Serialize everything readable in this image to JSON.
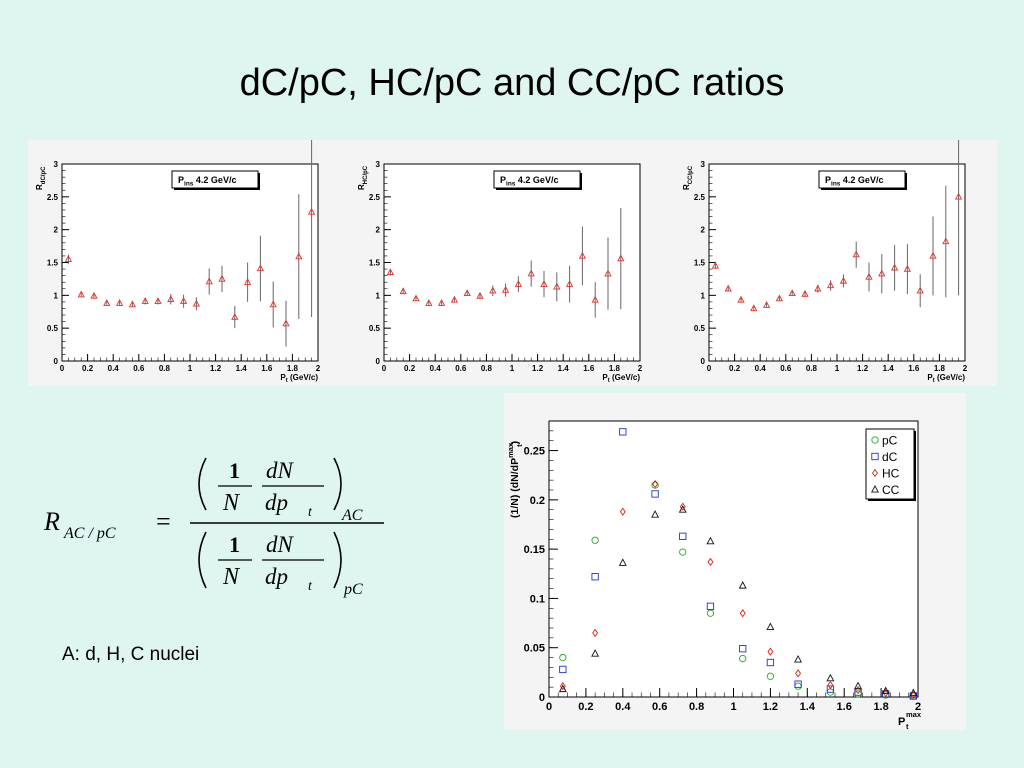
{
  "slide": {
    "title": "dC/pC, HC/pC and CC/pC ratios",
    "note": "A:  d, H, C nuclei"
  },
  "formula": {
    "lhs_main": "R",
    "lhs_sub": "AC / pC",
    "eq": "=",
    "one": "1",
    "N": "N",
    "dN": "dN",
    "dp": "dp",
    "t": "t",
    "sub_top": "AC",
    "sub_bottom": "pC"
  },
  "colors": {
    "background": "#dff5ef",
    "panel": "#f4f4f4",
    "ratio_marker": "#e0322a",
    "error_bar": "#666666",
    "pC": "#22aa22",
    "dC": "#2233cc",
    "HC": "#dd2211",
    "CC": "#111111"
  },
  "chart_data": [
    {
      "type": "scatter",
      "ylabel_main": "R",
      "ylabel_sub": "dC/pC",
      "xlabel": "P",
      "xlabel_sub": "t",
      "xlabel_unit": "(GeV/c)",
      "legend_main": "P",
      "legend_sub": "ins",
      "legend_rest": "4.2 GeV/c",
      "xlim": [
        0,
        2
      ],
      "ylim": [
        0,
        3
      ],
      "xticks": [
        "0",
        "0.2",
        "0.4",
        "0.6",
        "0.8",
        "1",
        "1.2",
        "1.4",
        "1.6",
        "1.8",
        "2"
      ],
      "yticks": [
        "0",
        "0.5",
        "1",
        "1.5",
        "2",
        "2.5",
        "3"
      ],
      "marker": "open-triangle",
      "points": [
        {
          "x": 0.05,
          "y": 1.55,
          "err": 0.07
        },
        {
          "x": 0.15,
          "y": 1.01,
          "err": 0.03
        },
        {
          "x": 0.25,
          "y": 0.99,
          "err": 0.03
        },
        {
          "x": 0.35,
          "y": 0.88,
          "err": 0.03
        },
        {
          "x": 0.45,
          "y": 0.88,
          "err": 0.03
        },
        {
          "x": 0.55,
          "y": 0.86,
          "err": 0.03
        },
        {
          "x": 0.65,
          "y": 0.91,
          "err": 0.05
        },
        {
          "x": 0.75,
          "y": 0.91,
          "err": 0.05
        },
        {
          "x": 0.85,
          "y": 0.94,
          "err": 0.08
        },
        {
          "x": 0.95,
          "y": 0.91,
          "err": 0.1
        },
        {
          "x": 1.05,
          "y": 0.87,
          "err": 0.1
        },
        {
          "x": 1.15,
          "y": 1.21,
          "err": 0.2
        },
        {
          "x": 1.25,
          "y": 1.25,
          "err": 0.2
        },
        {
          "x": 1.35,
          "y": 0.67,
          "err": 0.17
        },
        {
          "x": 1.45,
          "y": 1.2,
          "err": 0.3
        },
        {
          "x": 1.55,
          "y": 1.41,
          "err": 0.5
        },
        {
          "x": 1.65,
          "y": 0.86,
          "err": 0.35
        },
        {
          "x": 1.75,
          "y": 0.57,
          "err": 0.35
        },
        {
          "x": 1.85,
          "y": 1.59,
          "err": 0.95
        },
        {
          "x": 1.95,
          "y": 2.27,
          "err": 1.6
        }
      ]
    },
    {
      "type": "scatter",
      "ylabel_main": "R",
      "ylabel_sub": "HC/pC",
      "xlabel": "P",
      "xlabel_sub": "t",
      "xlabel_unit": "(GeV/c)",
      "legend_main": "P",
      "legend_sub": "ins",
      "legend_rest": "4.2 GeV/c",
      "xlim": [
        0,
        2
      ],
      "ylim": [
        0,
        3
      ],
      "xticks": [
        "0",
        "0.2",
        "0.4",
        "0.6",
        "0.8",
        "1",
        "1.2",
        "1.4",
        "1.6",
        "1.8",
        "2"
      ],
      "yticks": [
        "0",
        "0.5",
        "1",
        "1.5",
        "2",
        "2.5",
        "3"
      ],
      "marker": "open-triangle",
      "points": [
        {
          "x": 0.05,
          "y": 1.35,
          "err": 0.05
        },
        {
          "x": 0.15,
          "y": 1.06,
          "err": 0.03
        },
        {
          "x": 0.25,
          "y": 0.95,
          "err": 0.03
        },
        {
          "x": 0.35,
          "y": 0.88,
          "err": 0.03
        },
        {
          "x": 0.45,
          "y": 0.88,
          "err": 0.03
        },
        {
          "x": 0.55,
          "y": 0.93,
          "err": 0.03
        },
        {
          "x": 0.65,
          "y": 1.03,
          "err": 0.04
        },
        {
          "x": 0.75,
          "y": 0.99,
          "err": 0.05
        },
        {
          "x": 0.85,
          "y": 1.07,
          "err": 0.08
        },
        {
          "x": 0.95,
          "y": 1.08,
          "err": 0.1
        },
        {
          "x": 1.05,
          "y": 1.17,
          "err": 0.12
        },
        {
          "x": 1.15,
          "y": 1.33,
          "err": 0.2
        },
        {
          "x": 1.25,
          "y": 1.17,
          "err": 0.2
        },
        {
          "x": 1.35,
          "y": 1.13,
          "err": 0.22
        },
        {
          "x": 1.45,
          "y": 1.17,
          "err": 0.28
        },
        {
          "x": 1.55,
          "y": 1.6,
          "err": 0.45
        },
        {
          "x": 1.65,
          "y": 0.93,
          "err": 0.27
        },
        {
          "x": 1.75,
          "y": 1.33,
          "err": 0.55
        },
        {
          "x": 1.85,
          "y": 1.56,
          "err": 0.77
        }
      ]
    },
    {
      "type": "scatter",
      "ylabel_main": "R",
      "ylabel_sub": "CC/pC",
      "xlabel": "P",
      "xlabel_sub": "t",
      "xlabel_unit": "(GeV/c)",
      "legend_main": "P",
      "legend_sub": "ins",
      "legend_rest": "4.2 GeV/c",
      "xlim": [
        0,
        2
      ],
      "ylim": [
        0,
        3
      ],
      "xticks": [
        "0",
        "0.2",
        "0.4",
        "0.6",
        "0.8",
        "1",
        "1.2",
        "1.4",
        "1.6",
        "1.8",
        "2"
      ],
      "yticks": [
        "0",
        "0.5",
        "1",
        "1.5",
        "2",
        "2.5",
        "3"
      ],
      "marker": "open-triangle",
      "points": [
        {
          "x": 0.05,
          "y": 1.45,
          "err": 0.05
        },
        {
          "x": 0.15,
          "y": 1.1,
          "err": 0.03
        },
        {
          "x": 0.25,
          "y": 0.93,
          "err": 0.03
        },
        {
          "x": 0.35,
          "y": 0.8,
          "err": 0.03
        },
        {
          "x": 0.45,
          "y": 0.85,
          "err": 0.03
        },
        {
          "x": 0.55,
          "y": 0.95,
          "err": 0.03
        },
        {
          "x": 0.65,
          "y": 1.03,
          "err": 0.04
        },
        {
          "x": 0.75,
          "y": 1.02,
          "err": 0.04
        },
        {
          "x": 0.85,
          "y": 1.1,
          "err": 0.06
        },
        {
          "x": 0.95,
          "y": 1.15,
          "err": 0.08
        },
        {
          "x": 1.05,
          "y": 1.22,
          "err": 0.1
        },
        {
          "x": 1.15,
          "y": 1.62,
          "err": 0.2
        },
        {
          "x": 1.25,
          "y": 1.28,
          "err": 0.22
        },
        {
          "x": 1.35,
          "y": 1.33,
          "err": 0.3
        },
        {
          "x": 1.45,
          "y": 1.42,
          "err": 0.35
        },
        {
          "x": 1.55,
          "y": 1.4,
          "err": 0.38
        },
        {
          "x": 1.65,
          "y": 1.07,
          "err": 0.25
        },
        {
          "x": 1.75,
          "y": 1.6,
          "err": 0.6
        },
        {
          "x": 1.85,
          "y": 1.82,
          "err": 0.85
        },
        {
          "x": 1.95,
          "y": 2.5,
          "err": 1.5
        }
      ]
    },
    {
      "type": "scatter",
      "ylabel": "(1/N) (dN/dP",
      "ylabel_sup": "max",
      "ylabel_sub": "t",
      "ylabel_end": ")",
      "xlabel": "P",
      "xlabel_sup": "max",
      "xlabel_sub": "t",
      "xlim": [
        0,
        2
      ],
      "ylim": [
        0,
        0.28
      ],
      "xticks": [
        "0",
        "0.2",
        "0.4",
        "0.6",
        "0.8",
        "1",
        "1.2",
        "1.4",
        "1.6",
        "1.8",
        "2"
      ],
      "yticks": [
        "0",
        "0.05",
        "0.1",
        "0.15",
        "0.2",
        "0.25"
      ],
      "legend_position": "top-right",
      "series": [
        {
          "name": "pC",
          "marker": "circle",
          "color": "#22aa22",
          "x": [
            0.075,
            0.25,
            0.575,
            0.725,
            0.875,
            1.05,
            1.2,
            1.35,
            1.525,
            1.675,
            1.825,
            1.975
          ],
          "y": [
            0.04,
            0.159,
            0.215,
            0.147,
            0.085,
            0.039,
            0.021,
            0.011,
            0.005,
            0.003,
            0.002,
            0.001
          ]
        },
        {
          "name": "dC",
          "marker": "square",
          "color": "#2233cc",
          "x": [
            0.075,
            0.25,
            0.4,
            0.575,
            0.725,
            0.875,
            1.05,
            1.2,
            1.35,
            1.525,
            1.675,
            1.825,
            1.975
          ],
          "y": [
            0.028,
            0.122,
            0.269,
            0.206,
            0.163,
            0.092,
            0.049,
            0.035,
            0.013,
            0.008,
            0.005,
            0.003,
            0.001
          ]
        },
        {
          "name": "HC",
          "marker": "diamond",
          "color": "#dd2211",
          "x": [
            0.075,
            0.25,
            0.4,
            0.575,
            0.725,
            0.875,
            1.05,
            1.2,
            1.35,
            1.525,
            1.675,
            1.825,
            1.975
          ],
          "y": [
            0.011,
            0.065,
            0.188,
            0.216,
            0.193,
            0.137,
            0.085,
            0.046,
            0.024,
            0.012,
            0.007,
            0.004,
            0.002
          ]
        },
        {
          "name": "CC",
          "marker": "triangle",
          "color": "#111111",
          "x": [
            0.075,
            0.25,
            0.4,
            0.575,
            0.725,
            0.875,
            1.05,
            1.2,
            1.35,
            1.525,
            1.675,
            1.825,
            1.975
          ],
          "y": [
            0.008,
            0.044,
            0.136,
            0.185,
            0.19,
            0.158,
            0.113,
            0.071,
            0.038,
            0.019,
            0.011,
            0.006,
            0.004
          ]
        }
      ]
    }
  ]
}
